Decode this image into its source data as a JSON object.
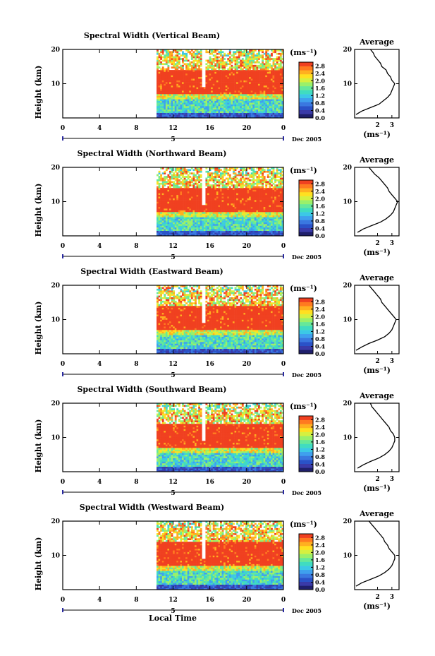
{
  "figure": {
    "xlabel_bottom": "Local Time",
    "ylabel": "Height (km)",
    "unit_label": "(ms⁻¹)",
    "date_label": "Dec 2005",
    "avg_title": "Average",
    "avg_xlabel": "(ms⁻¹)",
    "colors": [
      "#1f1f6b",
      "#3a3aa8",
      "#2a52c8",
      "#3a78e0",
      "#3fa0ee",
      "#3cc8e6",
      "#40dcc0",
      "#66e89a",
      "#9af06a",
      "#d6f040",
      "#ffe020",
      "#ffb020",
      "#ff7a20",
      "#f04020"
    ]
  },
  "chart_data": [
    {
      "type": "heatmap",
      "title": "Spectral Width (Vertical Beam)",
      "xticks": [
        "0",
        "4",
        "8",
        "12",
        "16",
        "20",
        "0"
      ],
      "day_label": "5",
      "yticks": [
        "20",
        "10"
      ],
      "colorbar_ticks": [
        "2.8",
        "2.4",
        "2.0",
        "1.6",
        "1.2",
        "0.8",
        "0.4",
        "0.0"
      ],
      "data_start_hour": 10.2,
      "avg_xticks": [
        "2",
        "3"
      ],
      "avg_profile": [
        [
          0.5,
          1
        ],
        [
          0.9,
          2
        ],
        [
          1.5,
          3
        ],
        [
          2.1,
          4
        ],
        [
          2.4,
          5
        ],
        [
          2.7,
          6
        ],
        [
          2.9,
          7
        ],
        [
          3.0,
          8
        ],
        [
          3.1,
          9
        ],
        [
          3.2,
          10
        ],
        [
          3.0,
          11
        ],
        [
          2.9,
          12
        ],
        [
          2.7,
          13
        ],
        [
          2.6,
          14
        ],
        [
          2.3,
          15
        ],
        [
          2.2,
          16
        ],
        [
          2.0,
          17
        ],
        [
          1.8,
          18
        ],
        [
          1.7,
          19
        ],
        [
          1.5,
          20
        ]
      ]
    },
    {
      "type": "heatmap",
      "title": "Spectral Width (Northward Beam)",
      "xticks": [
        "0",
        "4",
        "8",
        "12",
        "16",
        "20",
        "0"
      ],
      "day_label": "5",
      "yticks": [
        "20",
        "10"
      ],
      "colorbar_ticks": [
        "2.8",
        "2.4",
        "2.0",
        "1.6",
        "1.2",
        "0.8",
        "0.4",
        "0.0"
      ],
      "data_start_hour": 10.2,
      "avg_xticks": [
        "2",
        "3"
      ],
      "avg_profile": [
        [
          0.6,
          1
        ],
        [
          1.0,
          2
        ],
        [
          1.6,
          3
        ],
        [
          2.2,
          4
        ],
        [
          2.6,
          5
        ],
        [
          2.9,
          6
        ],
        [
          3.1,
          7
        ],
        [
          3.2,
          8
        ],
        [
          3.3,
          9
        ],
        [
          3.4,
          10
        ],
        [
          3.2,
          11
        ],
        [
          3.0,
          12
        ],
        [
          2.8,
          13
        ],
        [
          2.7,
          14
        ],
        [
          2.5,
          15
        ],
        [
          2.3,
          16
        ],
        [
          2.1,
          17
        ],
        [
          1.8,
          18
        ],
        [
          1.6,
          19
        ],
        [
          1.4,
          20
        ]
      ]
    },
    {
      "type": "heatmap",
      "title": "Spectral Width (Eastward Beam)",
      "xticks": [
        "0",
        "4",
        "8",
        "12",
        "16",
        "20",
        "0"
      ],
      "day_label": "5",
      "yticks": [
        "20",
        "10"
      ],
      "colorbar_ticks": [
        "2.8",
        "2.4",
        "2.0",
        "1.6",
        "1.2",
        "0.8",
        "0.4",
        "0.0"
      ],
      "data_start_hour": 10.2,
      "avg_xticks": [
        "2",
        "3"
      ],
      "avg_profile": [
        [
          0.5,
          1
        ],
        [
          0.9,
          2
        ],
        [
          1.4,
          3
        ],
        [
          2.0,
          4
        ],
        [
          2.5,
          5
        ],
        [
          2.8,
          6
        ],
        [
          3.0,
          7
        ],
        [
          3.1,
          8
        ],
        [
          3.2,
          9
        ],
        [
          3.3,
          10
        ],
        [
          3.1,
          11
        ],
        [
          2.9,
          12
        ],
        [
          2.7,
          13
        ],
        [
          2.5,
          14
        ],
        [
          2.3,
          15
        ],
        [
          2.2,
          16
        ],
        [
          2.0,
          17
        ],
        [
          1.8,
          18
        ],
        [
          1.6,
          19
        ],
        [
          1.4,
          20
        ]
      ]
    },
    {
      "type": "heatmap",
      "title": "Spectral Width (Southward Beam)",
      "xticks": [
        "0",
        "4",
        "8",
        "12",
        "16",
        "20",
        "0"
      ],
      "day_label": "5",
      "yticks": [
        "20",
        "10"
      ],
      "colorbar_ticks": [
        "2.8",
        "2.4",
        "2.0",
        "1.6",
        "1.2",
        "0.8",
        "0.4",
        "0.0"
      ],
      "data_start_hour": 10.2,
      "avg_xticks": [
        "2",
        "3"
      ],
      "avg_profile": [
        [
          0.6,
          1
        ],
        [
          1.0,
          2
        ],
        [
          1.5,
          3
        ],
        [
          2.1,
          4
        ],
        [
          2.5,
          5
        ],
        [
          2.8,
          6
        ],
        [
          3.0,
          7
        ],
        [
          3.1,
          8
        ],
        [
          3.2,
          9
        ],
        [
          3.2,
          10
        ],
        [
          3.1,
          11
        ],
        [
          2.9,
          12
        ],
        [
          2.8,
          13
        ],
        [
          2.6,
          14
        ],
        [
          2.4,
          15
        ],
        [
          2.2,
          16
        ],
        [
          2.0,
          17
        ],
        [
          1.8,
          18
        ],
        [
          1.6,
          19
        ],
        [
          1.5,
          20
        ]
      ]
    },
    {
      "type": "heatmap",
      "title": "Spectral Width (Westward Beam)",
      "xticks": [
        "0",
        "4",
        "8",
        "12",
        "16",
        "20",
        "0"
      ],
      "day_label": "5",
      "yticks": [
        "20",
        "10"
      ],
      "colorbar_ticks": [
        "2.8",
        "2.4",
        "2.0",
        "1.6",
        "1.2",
        "0.8",
        "0.4",
        "0.0"
      ],
      "data_start_hour": 10.2,
      "avg_xticks": [
        "2",
        "3"
      ],
      "avg_profile": [
        [
          0.5,
          1
        ],
        [
          0.9,
          2
        ],
        [
          1.5,
          3
        ],
        [
          2.1,
          4
        ],
        [
          2.5,
          5
        ],
        [
          2.8,
          6
        ],
        [
          3.0,
          7
        ],
        [
          3.1,
          8
        ],
        [
          3.2,
          9
        ],
        [
          3.2,
          10
        ],
        [
          3.0,
          11
        ],
        [
          2.8,
          12
        ],
        [
          2.7,
          13
        ],
        [
          2.5,
          14
        ],
        [
          2.4,
          15
        ],
        [
          2.2,
          16
        ],
        [
          2.0,
          17
        ],
        [
          1.8,
          18
        ],
        [
          1.6,
          19
        ],
        [
          1.4,
          20
        ]
      ]
    }
  ]
}
